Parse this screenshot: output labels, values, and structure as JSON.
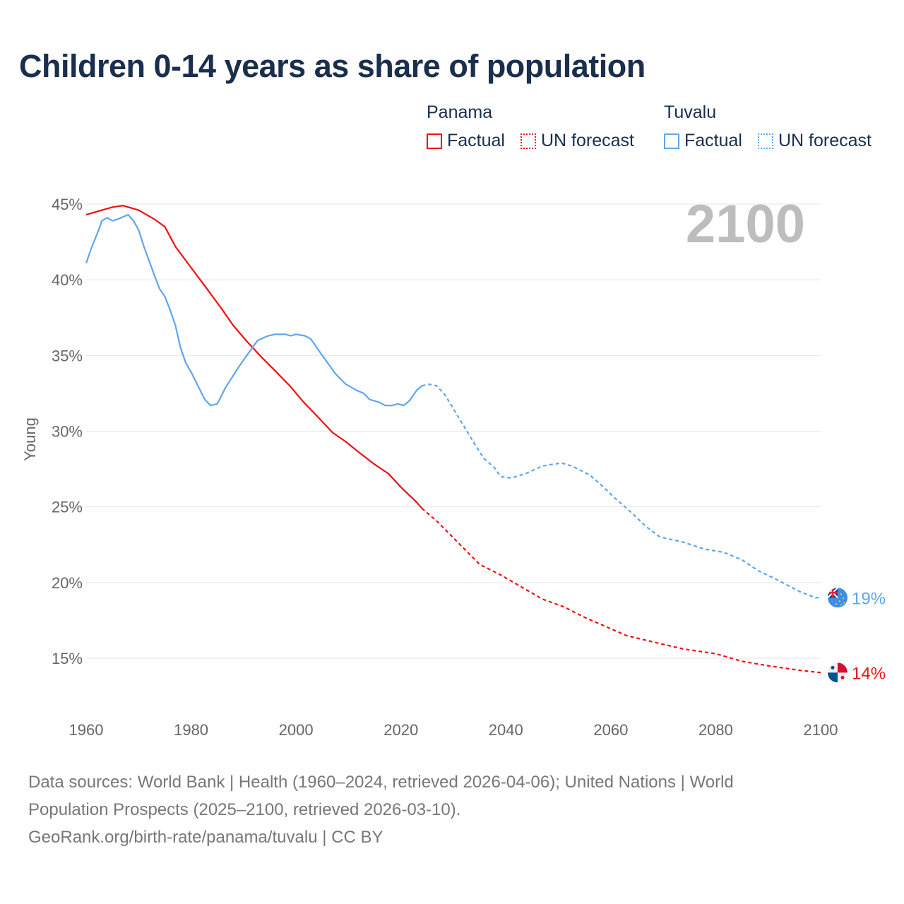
{
  "chart_data": {
    "type": "line",
    "title": "Children 0-14 years as share of population",
    "ylabel": "Young",
    "xlabel": "",
    "xlim": [
      1960,
      2100
    ],
    "ylim": [
      12,
      46
    ],
    "xticks": [
      1960,
      1980,
      2000,
      2020,
      2040,
      2060,
      2080,
      2100
    ],
    "xtick_labels": [
      "1960",
      "1980",
      "2000",
      "2020",
      "2040",
      "2060",
      "2080",
      "2100"
    ],
    "yticks": [
      15,
      20,
      25,
      30,
      35,
      40,
      45
    ],
    "ytick_labels": [
      "15%",
      "20%",
      "25%",
      "30%",
      "35%",
      "40%",
      "45%"
    ],
    "grid": true,
    "year_overlay": "2100",
    "legend_placement": "top-right",
    "series": [
      {
        "name": "Panama",
        "color": "#ee1111",
        "end_label": "14%",
        "flag": "panama-flag",
        "factual_label": "Factual",
        "forecast_label": "UN forecast",
        "factual": {
          "x": [
            1960,
            1962,
            1965,
            1967,
            1970,
            1973,
            1975,
            1977,
            1980,
            1982.6,
            1986,
            1988,
            1990.7,
            1993.4,
            1996,
            1998.8,
            2001.5,
            2004,
            2007,
            2009.5,
            2012,
            2015,
            2017.6,
            2020,
            2023,
            2024
          ],
          "y": [
            44.3,
            44.5,
            44.8,
            44.9,
            44.6,
            44.0,
            43.5,
            42.2,
            40.8,
            39.6,
            38.0,
            37.0,
            35.9,
            34.9,
            34.0,
            33.0,
            31.9,
            31.0,
            29.9,
            29.3,
            28.6,
            27.8,
            27.2,
            26.3,
            25.3,
            24.9
          ]
        },
        "forecast": {
          "x": [
            2024,
            2027,
            2031,
            2035,
            2039,
            2043,
            2047,
            2051,
            2055,
            2059,
            2063,
            2069,
            2074,
            2080,
            2085,
            2090,
            2096,
            2100
          ],
          "y": [
            24.9,
            24.0,
            22.6,
            21.2,
            20.5,
            19.7,
            18.9,
            18.4,
            17.7,
            17.1,
            16.5,
            16.0,
            15.6,
            15.3,
            14.8,
            14.5,
            14.2,
            14.05
          ]
        }
      },
      {
        "name": "Tuvalu",
        "color": "#5ea6ee",
        "end_label": "19%",
        "flag": "tuvalu-flag",
        "factual_label": "Factual",
        "forecast_label": "UN forecast",
        "factual": {
          "x": [
            1960,
            1961,
            1962.4,
            1963,
            1964,
            1965,
            1966,
            1968,
            1969,
            1970,
            1971,
            1973,
            1974,
            1975,
            1976,
            1977,
            1978,
            1979,
            1980,
            1982.6,
            1983.7,
            1985,
            1986.6,
            1989,
            1990.4,
            1992.7,
            1994.7,
            1996,
            1998,
            1999,
            2000,
            2001.7,
            2002.8,
            2004.8,
            2007.5,
            2009.5,
            2011.5,
            2012.9,
            2014,
            2015.9,
            2017,
            2018.3,
            2019.4,
            2020.5,
            2021.6,
            2023,
            2024
          ],
          "y": [
            41.1,
            42.1,
            43.3,
            43.9,
            44.1,
            43.9,
            44.0,
            44.3,
            43.9,
            43.3,
            42.2,
            40.3,
            39.4,
            38.9,
            38.0,
            37.0,
            35.5,
            34.5,
            33.9,
            32.1,
            31.7,
            31.8,
            32.9,
            34.2,
            34.9,
            36.0,
            36.3,
            36.4,
            36.4,
            36.3,
            36.4,
            36.3,
            36.1,
            35.1,
            33.8,
            33.1,
            32.7,
            32.5,
            32.1,
            31.9,
            31.7,
            31.7,
            31.8,
            31.7,
            32.0,
            32.7,
            33.0
          ]
        },
        "forecast": {
          "x": [
            2024,
            2025.4,
            2026.8,
            2028.4,
            2031,
            2033.8,
            2035.8,
            2037.8,
            2039,
            2041,
            2043.8,
            2047,
            2050.6,
            2052.6,
            2056,
            2058,
            2060.7,
            2064,
            2066.7,
            2069.4,
            2073.5,
            2078,
            2081.5,
            2085,
            2088,
            2091.6,
            2096,
            2099,
            2100
          ],
          "y": [
            33.0,
            33.1,
            33.0,
            32.4,
            30.9,
            29.3,
            28.2,
            27.6,
            27.0,
            26.9,
            27.2,
            27.7,
            27.9,
            27.7,
            27.1,
            26.5,
            25.6,
            24.6,
            23.7,
            23.0,
            22.7,
            22.2,
            22.0,
            21.5,
            20.8,
            20.2,
            19.4,
            19.0,
            19.0
          ]
        }
      }
    ]
  },
  "source": {
    "line1": "Data sources: World Bank | Health (1960–2024, retrieved 2026-04-06); United Nations | World",
    "line2": "Population Prospects (2025–2100, retrieved 2026-03-10).",
    "line3": "GeoRank.org/birth-rate/panama/tuvalu | CC BY"
  }
}
